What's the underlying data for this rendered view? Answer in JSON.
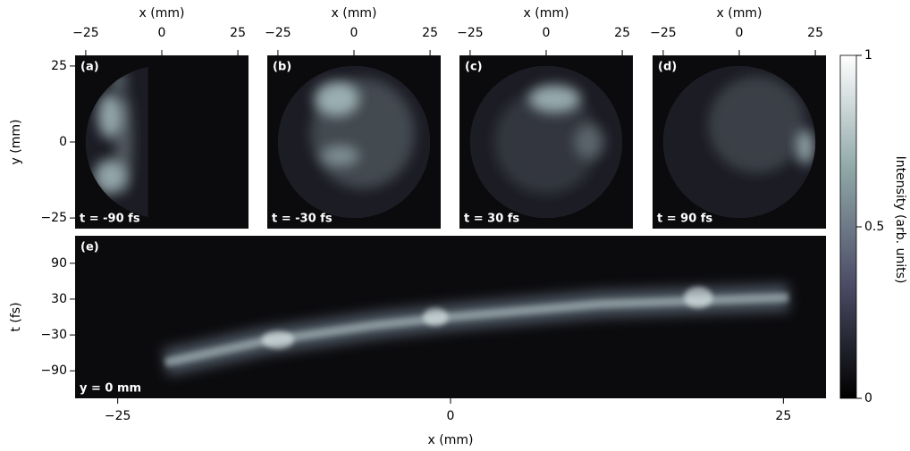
{
  "chart_data": [
    {
      "type": "image",
      "label": "(a)",
      "annotation": "t = -90 fs",
      "xlabel": "x (mm)",
      "ylabel": "y (mm)",
      "xlim": [
        -28.5,
        28.5
      ],
      "ylim": [
        -28.5,
        28.5
      ],
      "xticks": [
        {
          "value": -25,
          "label": "−25"
        },
        0,
        25
      ],
      "yticks": [
        {
          "value": -25,
          "label": "−25"
        },
        0,
        25
      ]
    },
    {
      "type": "image",
      "label": "(b)",
      "annotation": "t = -30 fs",
      "xlabel": "x (mm)",
      "xlim": [
        -28.5,
        28.5
      ],
      "ylim": [
        -28.5,
        28.5
      ],
      "xticks": [
        {
          "value": -25,
          "label": "−25"
        },
        0,
        25
      ]
    },
    {
      "type": "image",
      "label": "(c)",
      "annotation": "t = 30 fs",
      "xlabel": "x (mm)",
      "xlim": [
        -28.5,
        28.5
      ],
      "ylim": [
        -28.5,
        28.5
      ],
      "xticks": [
        {
          "value": -25,
          "label": "−25"
        },
        0,
        25
      ]
    },
    {
      "type": "image",
      "label": "(d)",
      "annotation": "t = 90 fs",
      "xlabel": "x (mm)",
      "xlim": [
        -28.5,
        28.5
      ],
      "ylim": [
        -28.5,
        28.5
      ],
      "xticks": [
        {
          "value": -25,
          "label": "−25"
        },
        0,
        25
      ]
    },
    {
      "type": "image",
      "label": "(e)",
      "annotation": "y = 0 mm",
      "xlabel": "x (mm)",
      "ylabel": "t (fs)",
      "xlim": [
        -28.2,
        28.2
      ],
      "ylim": [
        -136,
        136
      ],
      "xticks": [
        {
          "value": -25,
          "label": "−25"
        },
        0,
        25
      ],
      "yticks": [
        {
          "value": -90,
          "label": "−90"
        },
        {
          "value": -30,
          "label": "−30"
        },
        30,
        90
      ]
    },
    {
      "type": "colorbar",
      "ylabel": "Intensity (arb. units)",
      "ylim": [
        0,
        1
      ],
      "yticks": [
        0,
        0.5,
        1
      ],
      "colors": [
        "#000000",
        "#4c4c66",
        "#8fa7a7",
        "#ffffff"
      ]
    }
  ]
}
